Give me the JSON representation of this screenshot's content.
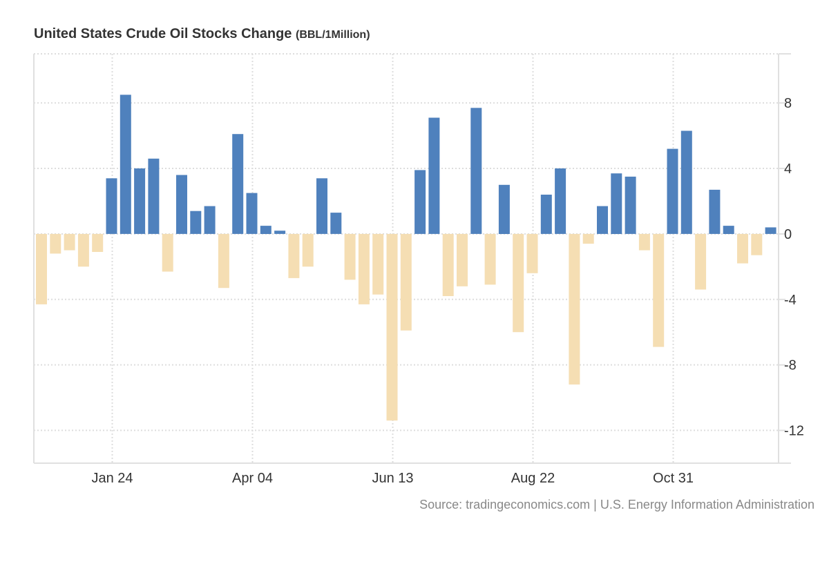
{
  "chart_data": {
    "type": "bar",
    "title": "United States Crude Oil Stocks Change",
    "unit": "(BBL/1Million)",
    "xlabel": "",
    "ylabel": "",
    "ylim": [
      -14,
      11
    ],
    "yticks": [
      8,
      4,
      0,
      -4,
      -8,
      -12
    ],
    "ytick_labels": [
      "8",
      "4",
      "0",
      "-4",
      "-8",
      "-12"
    ],
    "xticks": [
      {
        "index": 5,
        "label": "Jan 24"
      },
      {
        "index": 15,
        "label": "Apr 04"
      },
      {
        "index": 25,
        "label": "Jun 13"
      },
      {
        "index": 35,
        "label": "Aug 22"
      },
      {
        "index": 45,
        "label": "Oct 31"
      }
    ],
    "values": [
      -4.3,
      -1.2,
      -1.0,
      -2.0,
      -1.1,
      3.4,
      8.5,
      4.0,
      4.6,
      -2.3,
      3.6,
      1.4,
      1.7,
      -3.3,
      6.1,
      2.5,
      0.5,
      0.2,
      -2.7,
      -2.0,
      3.4,
      1.3,
      -2.8,
      -4.3,
      -3.7,
      -11.4,
      -5.9,
      3.9,
      7.1,
      -3.8,
      -3.2,
      7.7,
      -3.1,
      3.0,
      -6.0,
      -2.4,
      2.4,
      4.0,
      -9.2,
      -0.6,
      1.7,
      3.7,
      3.5,
      -1.0,
      -6.9,
      5.2,
      6.3,
      -3.4,
      2.7,
      0.5,
      -1.8,
      -1.3,
      0.4
    ],
    "grid": true,
    "y_axis_side": "right",
    "colors": {
      "positive": "#4f81bd",
      "negative": "#f5deb3",
      "grid": "#dddddd",
      "axis": "#e0e0e0",
      "text": "#333333"
    }
  },
  "source": "Source: tradingeconomics.com | U.S. Energy Information Administration"
}
